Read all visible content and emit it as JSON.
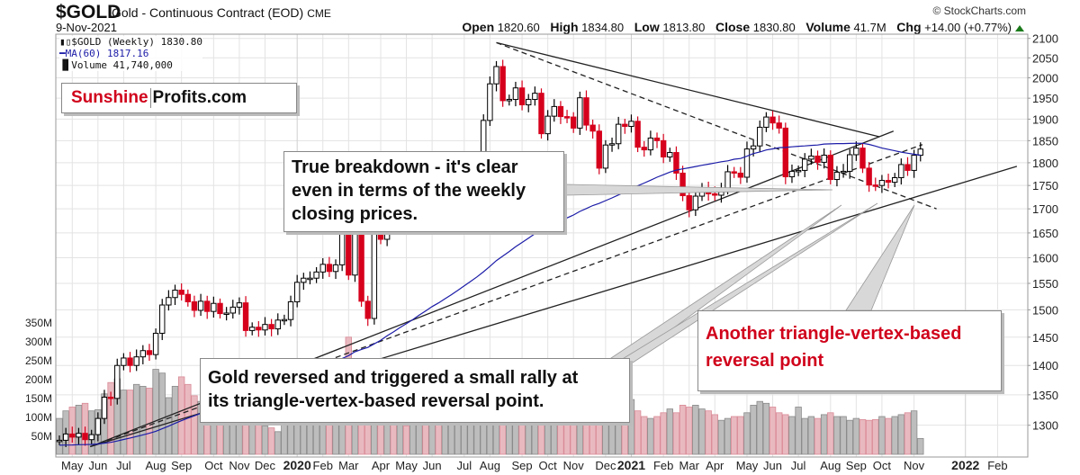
{
  "header": {
    "symbol": "$GOLD",
    "description": "Gold - Continuous Contract (EOD)",
    "exchange": "CME",
    "date": "9-Nov-2021",
    "copyright": "© StockCharts.com",
    "open_label": "Open",
    "open": "1820.60",
    "high_label": "High",
    "high": "1834.80",
    "low_label": "Low",
    "low": "1813.80",
    "close_label": "Close",
    "close": "1830.80",
    "volume_label": "Volume",
    "volume": "41.7M",
    "chg_label": "Chg",
    "chg": "+14.00 (+0.77%)"
  },
  "legend": {
    "price": "$GOLD (Weekly) 1830.80",
    "ma": "MA(60) 1817.16",
    "volume": "Volume 41,740,000"
  },
  "annotations": {
    "logo_red": "Sunshine",
    "logo_black": "Profits.com",
    "breakdown": [
      "True breakdown - it's clear",
      "even in terms of the weekly",
      "closing prices."
    ],
    "reversed": [
      "Gold reversed and triggered a small rally at",
      "its triangle-vertex-based reversal point."
    ],
    "another": [
      "Another triangle-vertex-based",
      "reversal point"
    ]
  },
  "colors": {
    "down": "#d6001c",
    "up": "#000000",
    "ma": "#1c1ca8",
    "vol_down": "#e9b9c0",
    "vol_up": "#bdbdbd",
    "annotation_red": "#d0021b"
  },
  "chart_data": {
    "type": "candlestick",
    "title": "$GOLD Gold - Continuous Contract (EOD) CME",
    "period": "weekly",
    "first_week": "2019-04-19",
    "scale": "log",
    "ylim": [
      1250,
      2100
    ],
    "y_ticks": [
      2100,
      2050,
      2000,
      1950,
      1900,
      1850,
      1800,
      1750,
      1700,
      1650,
      1600,
      1550,
      1500,
      1450,
      1400,
      1350,
      1300
    ],
    "volume_ticks": [
      "50M",
      "100M",
      "150M",
      "200M",
      "250M",
      "300M",
      "350M"
    ],
    "volume_tick_values": [
      50,
      100,
      150,
      200,
      250,
      300,
      350
    ],
    "x_labels": [
      {
        "label": "May",
        "week": 2
      },
      {
        "label": "Jun",
        "week": 6
      },
      {
        "label": "Jul",
        "week": 10
      },
      {
        "label": "Aug",
        "week": 15
      },
      {
        "label": "Sep",
        "week": 19
      },
      {
        "label": "Oct",
        "week": 24
      },
      {
        "label": "Nov",
        "week": 28
      },
      {
        "label": "Dec",
        "week": 32
      },
      {
        "label": "2020",
        "week": 37,
        "bold": true
      },
      {
        "label": "Feb",
        "week": 41
      },
      {
        "label": "Mar",
        "week": 45
      },
      {
        "label": "Apr",
        "week": 50
      },
      {
        "label": "May",
        "week": 54
      },
      {
        "label": "Jun",
        "week": 58
      },
      {
        "label": "Jul",
        "week": 63
      },
      {
        "label": "Aug",
        "week": 67
      },
      {
        "label": "Sep",
        "week": 72
      },
      {
        "label": "Oct",
        "week": 76
      },
      {
        "label": "Nov",
        "week": 80
      },
      {
        "label": "Dec",
        "week": 85
      },
      {
        "label": "2021",
        "week": 89,
        "bold": true
      },
      {
        "label": "Feb",
        "week": 94
      },
      {
        "label": "Mar",
        "week": 98
      },
      {
        "label": "Apr",
        "week": 102
      },
      {
        "label": "May",
        "week": 107
      },
      {
        "label": "Jun",
        "week": 111
      },
      {
        "label": "Jul",
        "week": 115
      },
      {
        "label": "Aug",
        "week": 120
      },
      {
        "label": "Sep",
        "week": 124
      },
      {
        "label": "Oct",
        "week": 128
      },
      {
        "label": "Nov",
        "week": 133
      },
      {
        "label": "2022",
        "week": 141,
        "bold": true
      },
      {
        "label": "Feb",
        "week": 146
      }
    ],
    "first_open": 1276,
    "closes": [
      1276,
      1286,
      1281,
      1287,
      1277,
      1285,
      1311,
      1346,
      1344,
      1400,
      1413,
      1400,
      1415,
      1426,
      1419,
      1457,
      1509,
      1523,
      1537,
      1529,
      1515,
      1499,
      1516,
      1497,
      1512,
      1493,
      1494,
      1505,
      1513,
      1462,
      1468,
      1463,
      1473,
      1465,
      1481,
      1482,
      1515,
      1552,
      1560,
      1560,
      1572,
      1587,
      1573,
      1586,
      1648,
      1566,
      1674,
      1516,
      1484,
      1654,
      1637,
      1752,
      1698,
      1745,
      1700,
      1713,
      1756,
      1735,
      1751,
      1683,
      1737,
      1753,
      1781,
      1790,
      1801,
      1810,
      1897,
      1985,
      2028,
      1944,
      1947,
      1975,
      1934,
      1947,
      1962,
      1866,
      1907,
      1930,
      1906,
      1905,
      1879,
      1951,
      1886,
      1872,
      1788,
      1840,
      1843,
      1888,
      1883,
      1895,
      1835,
      1829,
      1856,
      1850,
      1813,
      1823,
      1777,
      1728,
      1698,
      1727,
      1745,
      1732,
      1729,
      1744,
      1780,
      1777,
      1768,
      1831,
      1838,
      1881,
      1905,
      1891,
      1879,
      1769,
      1781,
      1783,
      1808,
      1815,
      1801,
      1817,
      1763,
      1779,
      1781,
      1818,
      1833,
      1788,
      1751,
      1750,
      1761,
      1757,
      1767,
      1796,
      1783,
      1816.8,
      1830.8
    ],
    "volumes_millions": [
      95,
      115,
      125,
      130,
      135,
      115,
      118,
      160,
      190,
      200,
      170,
      170,
      185,
      180,
      175,
      225,
      215,
      150,
      180,
      205,
      185,
      155,
      140,
      130,
      120,
      110,
      100,
      90,
      95,
      100,
      110,
      85,
      75,
      70,
      60,
      90,
      100,
      110,
      120,
      130,
      110,
      115,
      125,
      160,
      250,
      310,
      200,
      180,
      200,
      150,
      110,
      90,
      80,
      80,
      75,
      100,
      100,
      90,
      100,
      100,
      105,
      80,
      105,
      90,
      85,
      95,
      80,
      110,
      100,
      150,
      140,
      110,
      130,
      120,
      100,
      120,
      110,
      115,
      105,
      100,
      120,
      110,
      115,
      105,
      95,
      130,
      125,
      120,
      110,
      145,
      115,
      100,
      95,
      100,
      110,
      120,
      110,
      130,
      125,
      130,
      120,
      115,
      105,
      90,
      95,
      100,
      100,
      110,
      130,
      140,
      135,
      125,
      110,
      105,
      100,
      125,
      95,
      100,
      95,
      105,
      110,
      100,
      100,
      90,
      95,
      92,
      90,
      92,
      100,
      95,
      100,
      105,
      110,
      115,
      42
    ],
    "ma_period": 60,
    "trendlines": [
      {
        "name": "upper-resistance",
        "style": "solid",
        "from": {
          "week": 68,
          "price": 2089
        },
        "to": {
          "week": 127.6,
          "price": 1859
        }
      },
      {
        "name": "upper-dashed",
        "style": "dashed",
        "from": {
          "week": 68,
          "price": 2089
        },
        "to": {
          "week": 136.5,
          "price": 1700
        }
      },
      {
        "name": "rising-support",
        "style": "solid",
        "from": {
          "week": 4.8,
          "price": 1266
        },
        "to": {
          "week": 129.8,
          "price": 1872
        }
      },
      {
        "name": "rising-dashed",
        "style": "dashed",
        "from": {
          "week": 4.8,
          "price": 1266
        },
        "to": {
          "week": 134.3,
          "price": 1841
        }
      },
      {
        "name": "long-support",
        "style": "solid",
        "from": {
          "week": 4.8,
          "price": 1266
        },
        "to": {
          "week": 149,
          "price": 1792
        }
      }
    ]
  }
}
